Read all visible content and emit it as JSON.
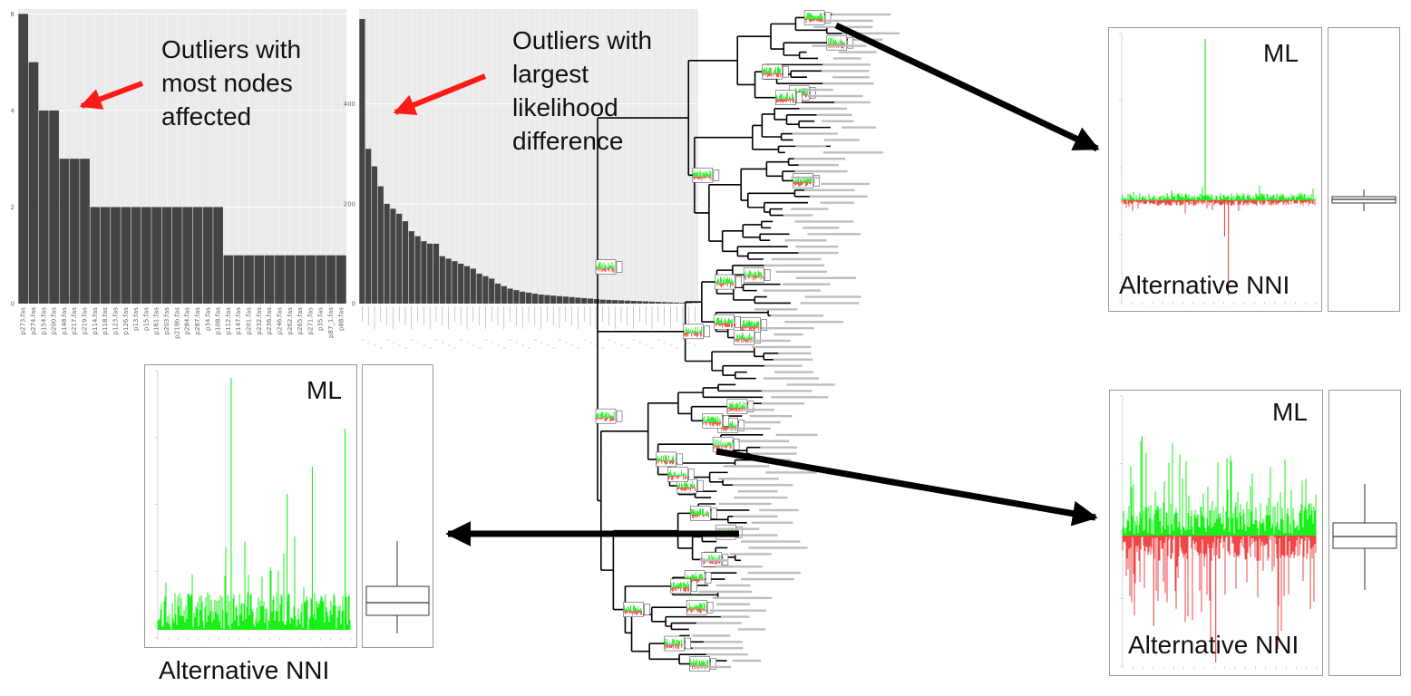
{
  "bar_chart_nodes": {
    "y_ticks": [
      "0",
      "2",
      "4",
      "6"
    ],
    "annotation_lines": [
      "Outliers with",
      "most nodes",
      "affected"
    ],
    "chart_data": {
      "type": "bar",
      "categories": [
        "p273.fas",
        "p274.fas",
        "p154.fas",
        "p200.fas",
        "p148.fas",
        "p217.fas",
        "p219.fas",
        "p114.fas",
        "p118.fas",
        "p123.fas",
        "p126.fas",
        "p13.fas",
        "p15.fas",
        "p161.fas",
        "p203.fas",
        "p219b.fas",
        "p284.fas",
        "p287.fas",
        "p34.fas",
        "p108.fas",
        "p112.fas",
        "p147.fas",
        "p201.fas",
        "p232.fas",
        "p236.fas",
        "p246.fas",
        "p262.fas",
        "p265.fas",
        "p271.fas",
        "p35.fas",
        "p87_1.fas",
        "p88.fas"
      ],
      "values": [
        6,
        5,
        4,
        4,
        3,
        3,
        3,
        2,
        2,
        2,
        2,
        2,
        2,
        2,
        2,
        2,
        2,
        2,
        2,
        2,
        1,
        1,
        1,
        1,
        1,
        1,
        1,
        1,
        1,
        1,
        1,
        1
      ],
      "ylim": [
        0,
        6.1
      ]
    }
  },
  "bar_chart_likelihood": {
    "y_ticks": [
      "0",
      "200",
      "400"
    ],
    "annotation_lines": [
      "Outliers with",
      "largest",
      "likelihood",
      "difference"
    ],
    "chart_data": {
      "type": "bar",
      "values": [
        570,
        310,
        275,
        235,
        200,
        190,
        180,
        165,
        145,
        135,
        125,
        120,
        120,
        95,
        90,
        85,
        80,
        75,
        70,
        60,
        55,
        50,
        40,
        35,
        30,
        27,
        24,
        22,
        20,
        18,
        17,
        16,
        15,
        14,
        13,
        12,
        11,
        10,
        9,
        8,
        7.5,
        7,
        6.5,
        6,
        5.5,
        5,
        4.5,
        4,
        3.5,
        3,
        2.5,
        2,
        1.5,
        1,
        0.5
      ],
      "ylim": [
        0,
        590
      ]
    }
  },
  "panel_top_right": {
    "top_label": "ML",
    "bottom_label": "Alternative NNI"
  },
  "panel_mid_right": {
    "top_label": "ML",
    "bottom_label": "Alternative NNI"
  },
  "panel_bottom_left": {
    "top_label": "ML",
    "bottom_label": "Alternative NNI"
  },
  "colors": {
    "bar": "#444444",
    "plot_bg": "#ebebeb",
    "gridline": "#ffffff",
    "positive": "#00ee00",
    "negative": "#ee3333",
    "arrow_red": "#ff1a1a",
    "arrow_black": "#000000"
  }
}
